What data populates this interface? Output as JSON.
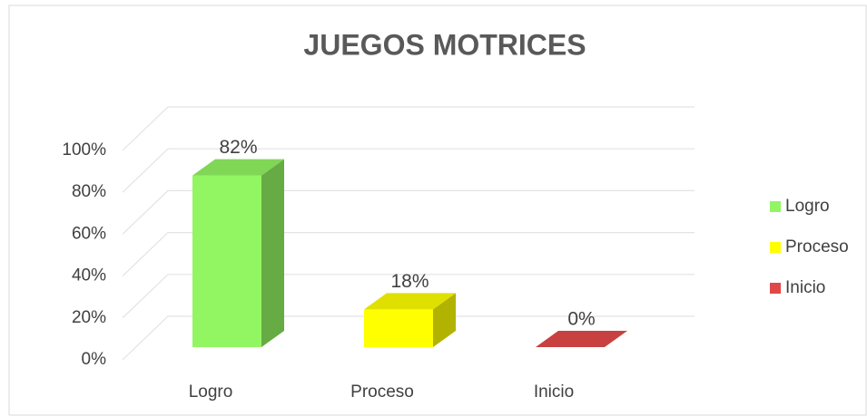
{
  "chart_data": {
    "type": "bar3d",
    "title": "JUEGOS MOTRICES",
    "categories": [
      "Logro",
      "Proceso",
      "Inicio"
    ],
    "values": [
      82,
      18,
      0
    ],
    "value_labels": [
      "82%",
      "18%",
      "0%"
    ],
    "colors": [
      "#92f562",
      "#ffff00",
      "#e04848"
    ],
    "ylim": [
      0,
      100
    ],
    "yticks": [
      {
        "value": 0,
        "label": "0%"
      },
      {
        "value": 20,
        "label": "20%"
      },
      {
        "value": 40,
        "label": "40%"
      },
      {
        "value": 60,
        "label": "60%"
      },
      {
        "value": 80,
        "label": "80%"
      },
      {
        "value": 100,
        "label": "100%"
      }
    ],
    "grid": true,
    "legend": "right"
  }
}
